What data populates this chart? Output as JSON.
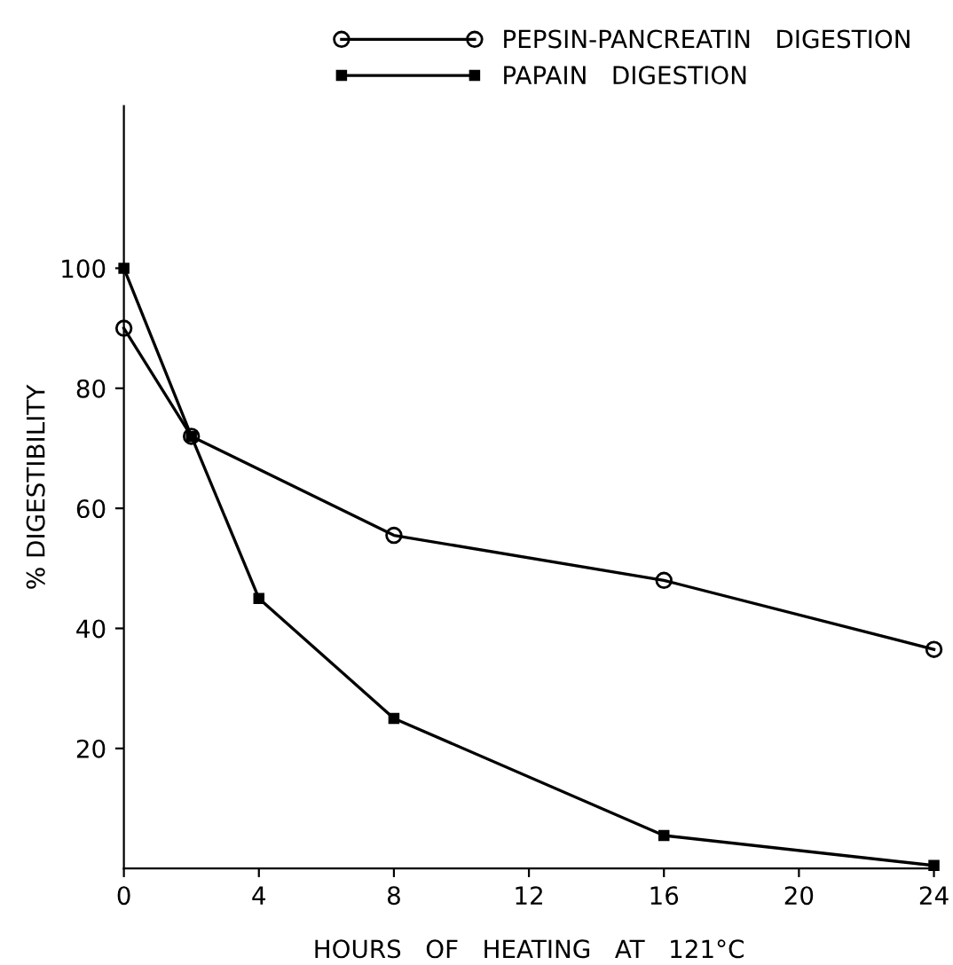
{
  "chart_data": {
    "type": "line",
    "xlabel": "HOURS   OF   HEATING   AT   121°C",
    "ylabel": "% DIGESTIBILITY",
    "xlim": [
      0,
      24
    ],
    "xticks": [
      0,
      4,
      8,
      12,
      16,
      20,
      24
    ],
    "ylim": [
      0,
      127
    ],
    "yticks": [
      20,
      40,
      60,
      80,
      100
    ],
    "grid": false,
    "legend": "top right",
    "line_style": "solid",
    "series": [
      {
        "name": "PEPSIN-PANCREATIN   DIGESTION",
        "color": "#000000",
        "marker": "circle",
        "x": [
          0,
          2,
          8,
          16,
          24
        ],
        "values": [
          90,
          72,
          55.5,
          48,
          36.5
        ]
      },
      {
        "name": "PAPAIN   DIGESTION",
        "color": "#000000",
        "marker": "square",
        "x": [
          0,
          2,
          4,
          8,
          16,
          24
        ],
        "values": [
          100,
          72,
          45,
          25,
          5.5,
          0.5
        ]
      }
    ]
  }
}
